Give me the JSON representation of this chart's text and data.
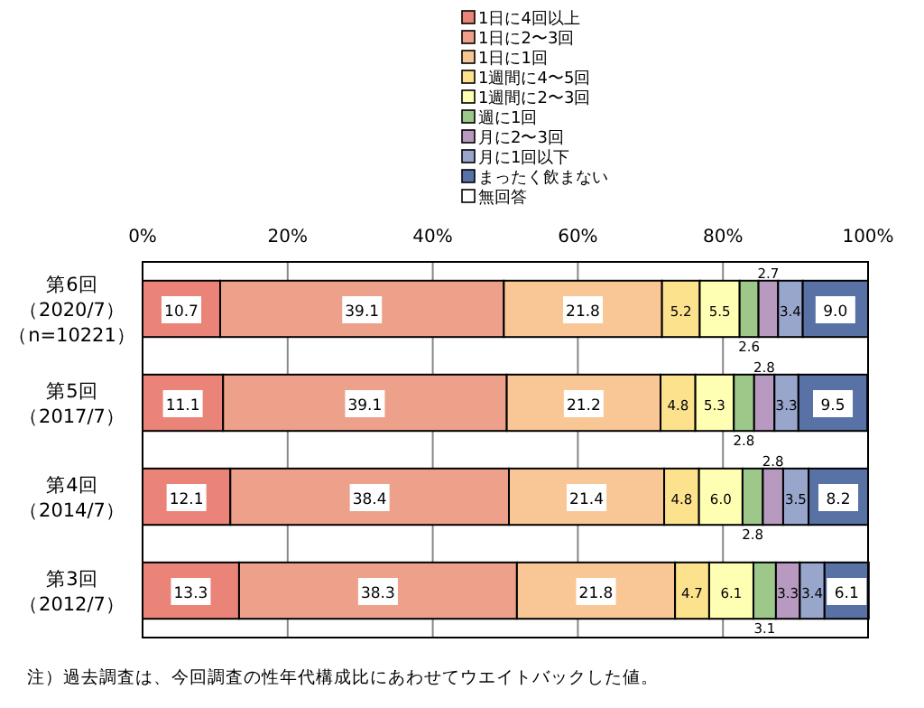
{
  "chart_data": {
    "type": "bar",
    "orientation": "horizontal",
    "stacked": true,
    "data_labels": true,
    "grid": "x",
    "legend": "top",
    "categories": [
      "第6回（2020/7）（n=10221）",
      "第5回（2017/7）",
      "第4回（2014/7）",
      "第3回（2012/7）"
    ],
    "xlim": [
      0,
      100
    ],
    "xticks": [
      {
        "value": 0,
        "label": "0%"
      },
      {
        "value": 20,
        "label": "20%"
      },
      {
        "value": 40,
        "label": "40%"
      },
      {
        "value": 60,
        "label": "60%"
      },
      {
        "value": 80,
        "label": "80%"
      },
      {
        "value": 100,
        "label": "100%"
      }
    ],
    "series": [
      {
        "name": "1日に4回以上",
        "color": "#eb8478",
        "values": [
          10.7,
          11.1,
          12.1,
          13.3
        ],
        "value_labels": [
          "10.7",
          "11.1",
          "12.1",
          "13.3"
        ]
      },
      {
        "name": "1日に2〜3回",
        "color": "#eda18b",
        "values": [
          39.1,
          39.1,
          38.4,
          38.3
        ],
        "value_labels": [
          "39.1",
          "39.1",
          "38.4",
          "38.3"
        ]
      },
      {
        "name": "1日に1回",
        "color": "#f9c795",
        "values": [
          21.8,
          21.2,
          21.4,
          21.8
        ],
        "value_labels": [
          "21.8",
          "21.2",
          "21.4",
          "21.8"
        ]
      },
      {
        "name": "1週間に4〜5回",
        "color": "#fde28e",
        "values": [
          5.2,
          4.8,
          4.8,
          4.7
        ],
        "value_labels": [
          "5.2",
          "4.8",
          "4.8",
          "4.7"
        ]
      },
      {
        "name": "1週間に2〜3回",
        "color": "#ffffb3",
        "values": [
          5.5,
          5.3,
          6.0,
          6.1
        ],
        "value_labels": [
          "5.5",
          "5.3",
          "6.0",
          "6.1"
        ]
      },
      {
        "name": "週に1回",
        "color": "#9dc88a",
        "values": [
          2.6,
          2.8,
          2.8,
          3.1
        ],
        "value_labels": [
          "2.6",
          "2.8",
          "2.8",
          "3.1"
        ]
      },
      {
        "name": "月に2〜3回",
        "color": "#b89ac0",
        "values": [
          2.7,
          2.8,
          2.8,
          3.3
        ],
        "value_labels": [
          "2.7",
          "2.8",
          "2.8",
          "3.3"
        ]
      },
      {
        "name": "月に1回以下",
        "color": "#99a6cc",
        "values": [
          3.4,
          3.3,
          3.5,
          3.4
        ],
        "value_labels": [
          "3.4",
          "3.3",
          "3.5",
          "3.4"
        ]
      },
      {
        "name": "まったく飲まない",
        "color": "#5872a6",
        "values": [
          9.0,
          9.5,
          8.2,
          6.1
        ],
        "value_labels": [
          "9.0",
          "9.5",
          "8.2",
          "6.1"
        ]
      },
      {
        "name": "無回答",
        "color": "#ffffff",
        "values": [
          null,
          null,
          null,
          null
        ]
      }
    ],
    "annotations": [
      "注）過去調査は、今回調査の性年代構成比にあわせてウエイトバックした値。"
    ]
  }
}
